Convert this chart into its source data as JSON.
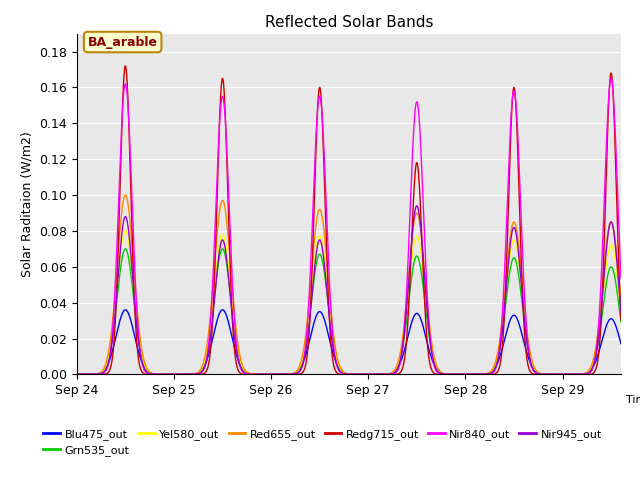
{
  "title": "Reflected Solar Bands",
  "xlabel": "Time",
  "ylabel": "Solar Raditaion (W/m2)",
  "annotation": "BA_arable",
  "ylim": [
    0,
    0.19
  ],
  "yticks": [
    0.0,
    0.02,
    0.04,
    0.06,
    0.08,
    0.1,
    0.12,
    0.14,
    0.16,
    0.18
  ],
  "xtick_labels": [
    "Sep 24",
    "Sep 25",
    "Sep 26",
    "Sep 27",
    "Sep 28",
    "Sep 29"
  ],
  "xtick_positions": [
    0,
    1,
    2,
    3,
    4,
    5
  ],
  "xlim": [
    0,
    5.6
  ],
  "background_color": "#e8e8e8",
  "series_peaks_by_day": {
    "Blu475_out": [
      0.036,
      0.036,
      0.035,
      0.034,
      0.033,
      0.031
    ],
    "Grn535_out": [
      0.07,
      0.07,
      0.067,
      0.066,
      0.065,
      0.06
    ],
    "Yel580_out": [
      0.08,
      0.078,
      0.077,
      0.077,
      0.075,
      0.072
    ],
    "Red655_out": [
      0.1,
      0.097,
      0.092,
      0.09,
      0.085,
      0.085
    ],
    "Redg715_out": [
      0.172,
      0.165,
      0.16,
      0.118,
      0.16,
      0.168
    ],
    "Nir840_out": [
      0.162,
      0.155,
      0.155,
      0.152,
      0.158,
      0.165
    ],
    "Nir945_out": [
      0.088,
      0.075,
      0.075,
      0.094,
      0.082,
      0.085
    ]
  },
  "series_widths": {
    "Blu475_out": 0.22,
    "Grn535_out": 0.2,
    "Yel580_out": 0.2,
    "Red655_out": 0.2,
    "Redg715_out": 0.13,
    "Nir840_out": 0.16,
    "Nir945_out": 0.18
  },
  "colors": {
    "Blu475_out": "#0000ff",
    "Grn535_out": "#00cc00",
    "Yel580_out": "#ffff00",
    "Red655_out": "#ff8800",
    "Redg715_out": "#cc0000",
    "Nir840_out": "#ff00ff",
    "Nir945_out": "#9900cc"
  },
  "series_order": [
    "Blu475_out",
    "Grn535_out",
    "Yel580_out",
    "Red655_out",
    "Redg715_out",
    "Nir840_out",
    "Nir945_out"
  ]
}
